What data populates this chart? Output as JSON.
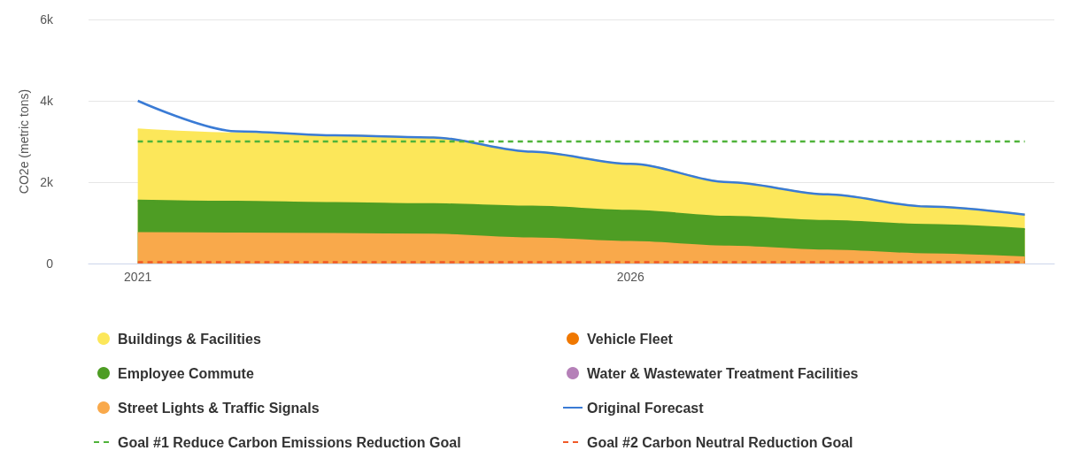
{
  "chart_data": {
    "type": "area",
    "stacked": true,
    "ylabel": "CO2e (metric tons)",
    "x": [
      2021,
      2022,
      2023,
      2024,
      2025,
      2026,
      2027,
      2028,
      2029,
      2030
    ],
    "xlim": [
      2020.5,
      2030.3
    ],
    "xticks": [
      2021,
      2026
    ],
    "ylim": [
      0,
      6000
    ],
    "yticks": [
      0,
      {
        "value": 2000,
        "label": "2k"
      },
      {
        "value": 4000,
        "label": "4k"
      },
      {
        "value": 6000,
        "label": "6k"
      }
    ],
    "grid": "y",
    "legend": "bottom",
    "marker": "none",
    "series": [
      {
        "name": "Street Lights & Traffic Signals",
        "color": "#f9a94b",
        "values": [
          750,
          740,
          730,
          710,
          620,
          530,
          420,
          320,
          230,
          150
        ]
      },
      {
        "name": "Employee Commute",
        "color": "#4e9d24",
        "values": [
          800,
          780,
          760,
          750,
          780,
          770,
          730,
          730,
          720,
          700
        ]
      },
      {
        "name": "Buildings & Facilities",
        "color": "#fce75a",
        "values": [
          1750,
          1680,
          1660,
          1640,
          1350,
          1150,
          850,
          650,
          450,
          350
        ]
      },
      {
        "name": "Vehicle Fleet",
        "color": "#f07800",
        "values": [
          null,
          null,
          null,
          null,
          null,
          null,
          null,
          null,
          null,
          null
        ]
      },
      {
        "name": "Water & Wastewater Treatment Facilities",
        "color": "#b580b8",
        "values": [
          null,
          null,
          null,
          null,
          null,
          null,
          null,
          null,
          null,
          null
        ]
      },
      {
        "name": "Original Forecast",
        "type": "line",
        "color": "#3a7bd5",
        "line_style": "solid",
        "values": [
          4000,
          3250,
          3150,
          3100,
          2750,
          2450,
          2000,
          1700,
          1400,
          1200
        ]
      },
      {
        "name": "Goal #1 Reduce Carbon Emissions Reduction Goal",
        "type": "line",
        "color": "#4fb33a",
        "line_style": "dashed",
        "values": [
          3000,
          3000,
          3000,
          3000,
          3000,
          3000,
          3000,
          3000,
          3000,
          3000
        ]
      },
      {
        "name": "Goal #2 Carbon Neutral Reduction Goal",
        "type": "line",
        "color": "#f05a28",
        "line_style": "dashed",
        "values": [
          30,
          30,
          30,
          30,
          30,
          30,
          30,
          30,
          30,
          30
        ]
      }
    ]
  }
}
